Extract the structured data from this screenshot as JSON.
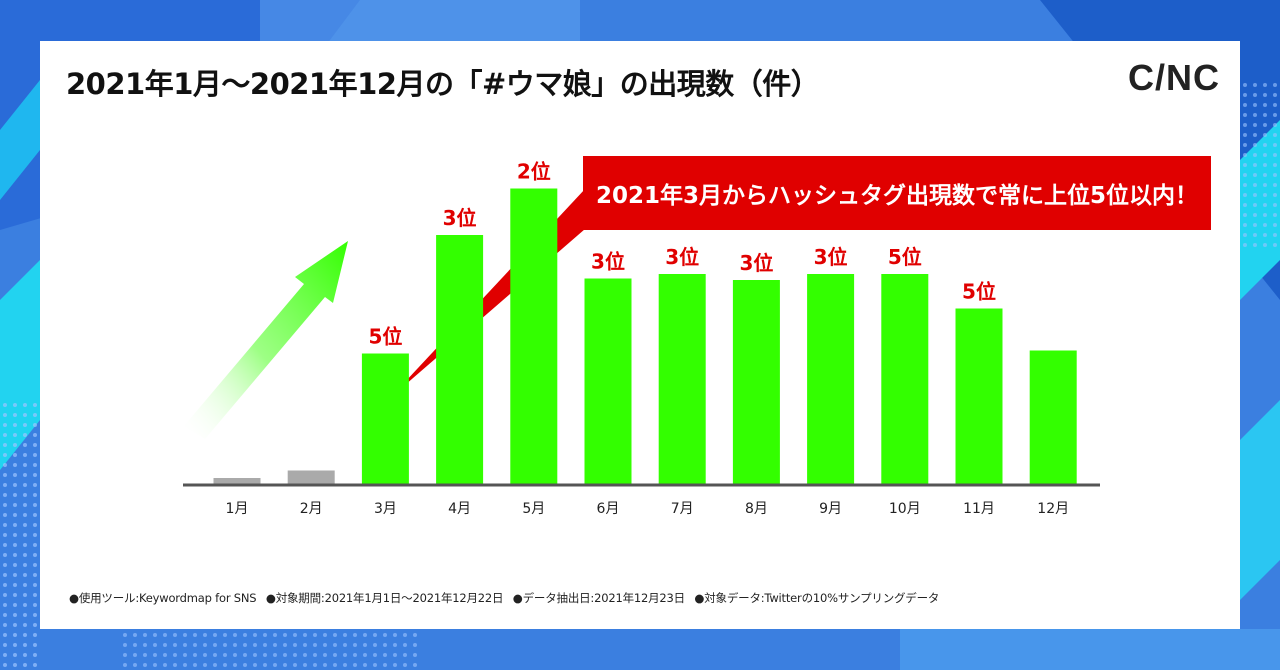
{
  "title": "2021年1月〜2021年12月の「#ウマ娘」の出現数（件）",
  "logo": "C/NC",
  "callout": "2021年3月からハッシュタグ出現数で常に上位5位以内！",
  "footnotes": [
    "●使用ツール:Keywordmap for SNS",
    "●対象期間:2021年1月1日〜2021年12月22日",
    "●データ抽出日:2021年12月23日",
    "●対象データ:Twitterの10%サンプリングデータ"
  ],
  "colors": {
    "bar": "#33ff00",
    "bar_low": "#aaaaaa",
    "rank": "#e00000",
    "callout": "#e00000",
    "axis": "#555555"
  },
  "chart_data": {
    "type": "bar",
    "title": "2021年1月〜2021年12月の「#ウマ娘」の出現数（件）",
    "categories": [
      "1月",
      "2月",
      "3月",
      "4月",
      "5月",
      "6月",
      "7月",
      "8月",
      "9月",
      "10月",
      "11月",
      "12月"
    ],
    "values": [
      2,
      4.5,
      43.5,
      83,
      98.5,
      68.5,
      70,
      68,
      70,
      70,
      58.5,
      44.5
    ],
    "value_note": "relative scale (y-axis not labeled)",
    "ylim": [
      0,
      100
    ],
    "rank_labels": [
      "",
      "",
      "5位",
      "3位",
      "2位",
      "3位",
      "3位",
      "3位",
      "3位",
      "5位",
      "5位",
      ""
    ],
    "xlabel": "",
    "ylabel": "",
    "grid": false
  }
}
